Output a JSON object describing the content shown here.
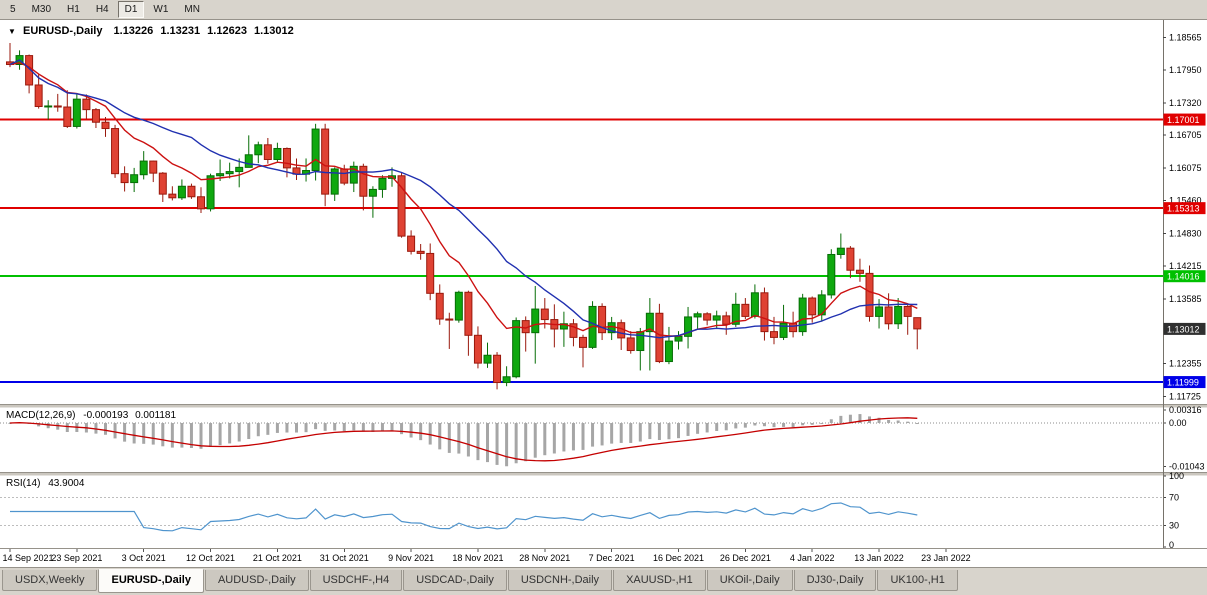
{
  "toolbar": {
    "timeframes": [
      {
        "label": "5",
        "active": false
      },
      {
        "label": "M30",
        "active": false
      },
      {
        "label": "H1",
        "active": false
      },
      {
        "label": "H4",
        "active": false
      },
      {
        "label": "D1",
        "active": true
      },
      {
        "label": "W1",
        "active": false
      },
      {
        "label": "MN",
        "active": false
      }
    ]
  },
  "header": {
    "symbol_icon": "▼",
    "symbol": "EURUSD-,Daily",
    "open": "1.13226",
    "high": "1.13231",
    "low": "1.12623",
    "close": "1.13012"
  },
  "chart_data": {
    "type": "candlestick",
    "symbol": "EURUSD",
    "timeframe": "Daily",
    "ylim": [
      1.116,
      1.1886
    ],
    "price_ticks": [
      "1.18565",
      "1.17950",
      "1.17320",
      "1.16705",
      "1.16075",
      "1.15460",
      "1.14830",
      "1.14215",
      "1.13585",
      "1.12355",
      "1.11725"
    ],
    "hlines": [
      {
        "price": 1.17001,
        "label": "1.17001",
        "color": "#e00000"
      },
      {
        "price": 1.15313,
        "label": "1.15313",
        "color": "#e00000"
      },
      {
        "price": 1.14016,
        "label": "1.14016",
        "color": "#00c000"
      },
      {
        "price": 1.11999,
        "label": "1.11999",
        "color": "#0000e8"
      }
    ],
    "current_price": {
      "price": 1.13012,
      "label": "1.13012",
      "bg": "#303030"
    },
    "moving_averages": [
      {
        "type": "ema",
        "period": 10,
        "color": "#cc1111"
      },
      {
        "type": "sma",
        "period": 20,
        "color": "#2030b0"
      }
    ],
    "date_labels": [
      {
        "i": 0,
        "t": "14 Sep 2021"
      },
      {
        "i": 7,
        "t": "23 Sep 2021"
      },
      {
        "i": 14,
        "t": "3 Oct 2021"
      },
      {
        "i": 21,
        "t": "12 Oct 2021"
      },
      {
        "i": 28,
        "t": "21 Oct 2021"
      },
      {
        "i": 35,
        "t": "31 Oct 2021"
      },
      {
        "i": 42,
        "t": "9 Nov 2021"
      },
      {
        "i": 49,
        "t": "18 Nov 2021"
      },
      {
        "i": 56,
        "t": "28 Nov 2021"
      },
      {
        "i": 63,
        "t": "7 Dec 2021"
      },
      {
        "i": 70,
        "t": "16 Dec 2021"
      },
      {
        "i": 77,
        "t": "26 Dec 2021"
      },
      {
        "i": 84,
        "t": "4 Jan 2022"
      },
      {
        "i": 91,
        "t": "13 Jan 2022"
      },
      {
        "i": 98,
        "t": "23 Jan 2022"
      }
    ],
    "candles": [
      [
        1.181,
        1.1846,
        1.18,
        1.1805
      ],
      [
        1.1805,
        1.1832,
        1.1795,
        1.1822
      ],
      [
        1.1822,
        1.1824,
        1.175,
        1.1766
      ],
      [
        1.1766,
        1.1786,
        1.1721,
        1.1725
      ],
      [
        1.1725,
        1.1737,
        1.17,
        1.1726
      ],
      [
        1.1726,
        1.1749,
        1.1715,
        1.1724
      ],
      [
        1.1724,
        1.1756,
        1.1684,
        1.1687
      ],
      [
        1.1687,
        1.175,
        1.1683,
        1.1739
      ],
      [
        1.1739,
        1.1748,
        1.1701,
        1.1719
      ],
      [
        1.1719,
        1.1722,
        1.1684,
        1.1695
      ],
      [
        1.1695,
        1.1705,
        1.1667,
        1.1683
      ],
      [
        1.1683,
        1.169,
        1.1589,
        1.1597
      ],
      [
        1.1597,
        1.1611,
        1.1563,
        1.158
      ],
      [
        1.158,
        1.1608,
        1.1562,
        1.1595
      ],
      [
        1.1595,
        1.164,
        1.1586,
        1.1621
      ],
      [
        1.1621,
        1.1622,
        1.1581,
        1.1598
      ],
      [
        1.1598,
        1.16,
        1.1543,
        1.1558
      ],
      [
        1.1558,
        1.1573,
        1.1546,
        1.1551
      ],
      [
        1.1551,
        1.1586,
        1.1547,
        1.1573
      ],
      [
        1.1573,
        1.1578,
        1.1549,
        1.1553
      ],
      [
        1.1553,
        1.1571,
        1.1522,
        1.153
      ],
      [
        1.153,
        1.1597,
        1.1525,
        1.1593
      ],
      [
        1.1593,
        1.1624,
        1.1583,
        1.1597
      ],
      [
        1.1597,
        1.1618,
        1.1588,
        1.1601
      ],
      [
        1.1601,
        1.1626,
        1.1571,
        1.1609
      ],
      [
        1.1609,
        1.167,
        1.1609,
        1.1633
      ],
      [
        1.1633,
        1.1658,
        1.1617,
        1.1652
      ],
      [
        1.1652,
        1.1665,
        1.1616,
        1.1624
      ],
      [
        1.1624,
        1.1656,
        1.162,
        1.1645
      ],
      [
        1.1645,
        1.1647,
        1.159,
        1.1608
      ],
      [
        1.1608,
        1.1626,
        1.1585,
        1.1596
      ],
      [
        1.1596,
        1.1626,
        1.1582,
        1.1603
      ],
      [
        1.1603,
        1.1692,
        1.1584,
        1.1682
      ],
      [
        1.1682,
        1.1692,
        1.1535,
        1.1558
      ],
      [
        1.1558,
        1.1609,
        1.1545,
        1.1606
      ],
      [
        1.1606,
        1.1614,
        1.1575,
        1.1579
      ],
      [
        1.1579,
        1.162,
        1.1562,
        1.1611
      ],
      [
        1.1611,
        1.1616,
        1.1527,
        1.1554
      ],
      [
        1.1554,
        1.1573,
        1.1513,
        1.1567
      ],
      [
        1.1567,
        1.1594,
        1.1551,
        1.1588
      ],
      [
        1.1588,
        1.1609,
        1.1572,
        1.1593
      ],
      [
        1.1593,
        1.1599,
        1.1475,
        1.1478
      ],
      [
        1.1478,
        1.1489,
        1.1443,
        1.1449
      ],
      [
        1.1449,
        1.1463,
        1.1433,
        1.1445
      ],
      [
        1.1445,
        1.1464,
        1.1356,
        1.1369
      ],
      [
        1.1369,
        1.1386,
        1.1309,
        1.132
      ],
      [
        1.132,
        1.1332,
        1.1263,
        1.1318
      ],
      [
        1.1318,
        1.1374,
        1.1313,
        1.1371
      ],
      [
        1.1371,
        1.1374,
        1.125,
        1.1289
      ],
      [
        1.1289,
        1.1306,
        1.1226,
        1.1236
      ],
      [
        1.1236,
        1.1275,
        1.1227,
        1.1251
      ],
      [
        1.1251,
        1.1257,
        1.1186,
        1.1199
      ],
      [
        1.1199,
        1.123,
        1.1192,
        1.121
      ],
      [
        1.121,
        1.1323,
        1.1207,
        1.1317
      ],
      [
        1.1317,
        1.1325,
        1.1258,
        1.1294
      ],
      [
        1.1294,
        1.1383,
        1.1235,
        1.1339
      ],
      [
        1.1339,
        1.136,
        1.1302,
        1.1319
      ],
      [
        1.1319,
        1.1348,
        1.1266,
        1.1301
      ],
      [
        1.1301,
        1.1334,
        1.1267,
        1.1311
      ],
      [
        1.1311,
        1.132,
        1.1268,
        1.1285
      ],
      [
        1.1285,
        1.129,
        1.1228,
        1.1266
      ],
      [
        1.1266,
        1.1354,
        1.1263,
        1.1344
      ],
      [
        1.1344,
        1.135,
        1.128,
        1.1294
      ],
      [
        1.1294,
        1.1324,
        1.128,
        1.1313
      ],
      [
        1.1313,
        1.1319,
        1.1261,
        1.1284
      ],
      [
        1.1284,
        1.1297,
        1.1254,
        1.126
      ],
      [
        1.126,
        1.1303,
        1.1222,
        1.1296
      ],
      [
        1.1296,
        1.136,
        1.1222,
        1.1331
      ],
      [
        1.1331,
        1.1349,
        1.1236,
        1.1239
      ],
      [
        1.1239,
        1.1305,
        1.1234,
        1.1278
      ],
      [
        1.1278,
        1.1297,
        1.1262,
        1.1287
      ],
      [
        1.1287,
        1.1343,
        1.1264,
        1.1324
      ],
      [
        1.1324,
        1.1334,
        1.13,
        1.133
      ],
      [
        1.133,
        1.1333,
        1.1308,
        1.1318
      ],
      [
        1.1318,
        1.1336,
        1.1302,
        1.1326
      ],
      [
        1.1326,
        1.1334,
        1.129,
        1.131
      ],
      [
        1.131,
        1.137,
        1.1305,
        1.1348
      ],
      [
        1.1348,
        1.136,
        1.132,
        1.1325
      ],
      [
        1.1325,
        1.1386,
        1.1321,
        1.137
      ],
      [
        1.137,
        1.138,
        1.1279,
        1.1296
      ],
      [
        1.1296,
        1.1324,
        1.1272,
        1.1285
      ],
      [
        1.1285,
        1.1347,
        1.128,
        1.1312
      ],
      [
        1.1312,
        1.1334,
        1.1285,
        1.1296
      ],
      [
        1.1296,
        1.1368,
        1.1288,
        1.136
      ],
      [
        1.136,
        1.1363,
        1.1313,
        1.1328
      ],
      [
        1.1328,
        1.1375,
        1.1315,
        1.1366
      ],
      [
        1.1366,
        1.1453,
        1.1359,
        1.1443
      ],
      [
        1.1443,
        1.1483,
        1.1435,
        1.1455
      ],
      [
        1.1455,
        1.1459,
        1.1398,
        1.1413
      ],
      [
        1.1413,
        1.1435,
        1.1391,
        1.1407
      ],
      [
        1.1407,
        1.1422,
        1.1315,
        1.1325
      ],
      [
        1.1325,
        1.1358,
        1.1302,
        1.1343
      ],
      [
        1.1343,
        1.1369,
        1.13,
        1.1311
      ],
      [
        1.1311,
        1.136,
        1.1301,
        1.1344
      ],
      [
        1.1344,
        1.1347,
        1.129,
        1.1325
      ],
      [
        1.13226,
        1.13231,
        1.12623,
        1.13012
      ]
    ]
  },
  "macd": {
    "name": "MACD(12,26,9)",
    "value": "-0.000193",
    "signal": "0.001181",
    "fast": 12,
    "slow": 26,
    "smooth": 9,
    "ylim": [
      -0.0115,
      0.0036
    ],
    "axis": [
      {
        "v": 0.00316,
        "t": "0.00316"
      },
      {
        "v": 0,
        "t": "0.00"
      },
      {
        "v": -0.01043,
        "t": "-0.01043"
      }
    ],
    "colors": {
      "histogram": "#a6a6a6",
      "signal": "#c40000"
    }
  },
  "rsi": {
    "name": "RSI(14)",
    "value": "43.9004",
    "period": 14,
    "levels": [
      {
        "v": 100,
        "t": "100"
      },
      {
        "v": 70,
        "t": "70"
      },
      {
        "v": 30,
        "t": "30"
      },
      {
        "v": 0,
        "t": "0"
      }
    ],
    "dotted": [
      70,
      30
    ],
    "color": "#4f94cd"
  },
  "tabs": [
    {
      "label": "USDX,Weekly",
      "active": false
    },
    {
      "label": "EURUSD-,Daily",
      "active": true
    },
    {
      "label": "AUDUSD-,Daily",
      "active": false
    },
    {
      "label": "USDCHF-,H4",
      "active": false
    },
    {
      "label": "USDCAD-,Daily",
      "active": false
    },
    {
      "label": "USDCNH-,Daily",
      "active": false
    },
    {
      "label": "XAUUSD-,H1",
      "active": false
    },
    {
      "label": "UKOil-,Daily",
      "active": false
    },
    {
      "label": "DJ30-,Daily",
      "active": false
    },
    {
      "label": "UK100-,H1",
      "active": false
    }
  ],
  "colors": {
    "up_fill": "#0fa80f",
    "up_stroke": "#066d06",
    "down_fill": "#df4233",
    "down_stroke": "#99190d",
    "window_bg": "#d8d4cc",
    "panel_bg": "#ffffff",
    "axis_text": "#000000"
  }
}
